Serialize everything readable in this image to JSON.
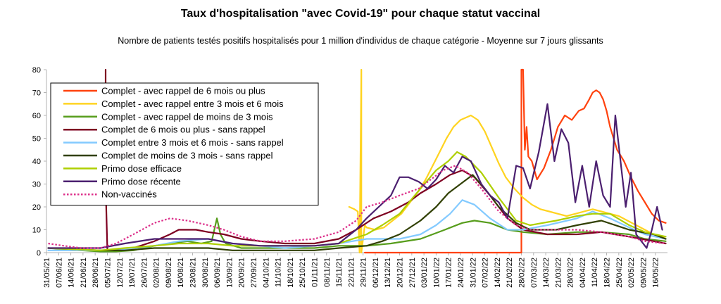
{
  "chart_data": {
    "type": "line",
    "title": "Taux d'hospitalisation \"avec Covid-19\" pour chaque statut vaccinal",
    "subtitle": "Nombre de patients testés positifs hospitalisés pour 1 million d'individus de chaque catégorie - Moyenne sur 7 jours glissants",
    "ylim": [
      0,
      80
    ],
    "yticks": [
      0,
      10,
      20,
      30,
      40,
      50,
      60,
      70,
      80
    ],
    "xlim": [
      "2021-05-31",
      "2022-05-23"
    ],
    "xticks": [
      "31/05/21",
      "07/06/21",
      "14/06/21",
      "21/06/21",
      "28/06/21",
      "05/07/21",
      "12/07/21",
      "19/07/21",
      "26/07/21",
      "02/08/21",
      "09/08/21",
      "16/08/21",
      "23/08/21",
      "30/08/21",
      "06/09/21",
      "13/09/21",
      "20/09/21",
      "27/09/21",
      "04/10/21",
      "11/10/21",
      "18/10/21",
      "25/10/21",
      "01/11/21",
      "08/11/21",
      "15/11/21",
      "22/11/21",
      "29/11/21",
      "06/12/21",
      "13/12/21",
      "20/12/21",
      "27/12/21",
      "03/01/22",
      "10/01/22",
      "17/01/22",
      "24/01/22",
      "31/01/22",
      "07/02/22",
      "14/02/22",
      "21/02/22",
      "28/02/22",
      "07/03/22",
      "14/03/22",
      "21/03/22",
      "28/03/22",
      "04/04/22",
      "11/04/22",
      "18/04/22",
      "25/04/22",
      "02/05/22",
      "09/05/22",
      "16/05/22"
    ],
    "grid": false,
    "legend_position": "top-left",
    "series": [
      {
        "name": "Complet - avec rappel de 6 mois ou plus",
        "color": "#ff420e",
        "x": [
          "2021-11-30",
          "2022-02-27",
          "2022-02-28",
          "2022-02-28",
          "2022-03-01",
          "2022-03-02",
          "2022-03-03",
          "2022-03-04",
          "2022-03-06",
          "2022-03-09",
          "2022-03-13",
          "2022-03-17",
          "2022-03-21",
          "2022-03-25",
          "2022-03-29",
          "2022-04-02",
          "2022-04-05",
          "2022-04-08",
          "2022-04-10",
          "2022-04-12",
          "2022-04-14",
          "2022-04-16",
          "2022-04-18",
          "2022-04-20",
          "2022-04-24",
          "2022-04-28",
          "2022-05-02",
          "2022-05-06",
          "2022-05-10",
          "2022-05-14",
          "2022-05-18",
          "2022-05-22"
        ],
        "y": [
          0,
          0,
          0,
          80,
          80,
          45,
          55,
          42,
          40,
          32,
          37,
          45,
          55,
          60,
          58,
          62,
          63,
          67,
          70,
          71,
          70,
          67,
          62,
          55,
          45,
          40,
          33,
          27,
          22,
          17,
          14,
          13
        ]
      },
      {
        "name": "Complet - avec rappel entre 3 mois et 6 mois",
        "color": "#ffd320",
        "x": [
          "2021-11-21",
          "2021-11-24",
          "2021-11-26",
          "2021-11-27",
          "2021-11-28",
          "2021-11-28",
          "2021-11-30",
          "2021-12-01",
          "2021-12-06",
          "2021-12-11",
          "2021-12-16",
          "2021-12-21",
          "2021-12-26",
          "2021-12-31",
          "2022-01-04",
          "2022-01-08",
          "2022-01-12",
          "2022-01-16",
          "2022-01-20",
          "2022-01-24",
          "2022-01-27",
          "2022-01-30",
          "2022-02-03",
          "2022-02-07",
          "2022-02-11",
          "2022-02-15",
          "2022-02-19",
          "2022-02-24",
          "2022-03-01",
          "2022-03-06",
          "2022-03-11",
          "2022-03-16",
          "2022-03-21",
          "2022-03-26",
          "2022-03-31",
          "2022-04-05",
          "2022-04-10",
          "2022-04-15",
          "2022-04-20",
          "2022-04-25",
          "2022-04-30",
          "2022-05-05",
          "2022-05-10",
          "2022-05-15",
          "2022-05-20",
          "2022-05-22"
        ],
        "y": [
          20,
          19,
          18,
          0,
          80,
          0,
          12,
          11,
          10,
          11,
          14,
          17,
          22,
          27,
          32,
          38,
          44,
          50,
          55,
          58,
          59,
          60,
          58,
          53,
          46,
          39,
          33,
          28,
          24,
          21,
          19,
          18,
          17,
          16,
          17,
          18,
          19,
          18,
          17,
          16,
          14,
          12,
          10,
          8,
          7,
          6
        ]
      },
      {
        "name": "Complet - avec rappel de moins de 3 mois",
        "color": "#579d1c",
        "x": [
          "2021-06-01",
          "2021-06-10",
          "2021-06-20",
          "2021-07-01",
          "2021-07-10",
          "2021-07-20",
          "2021-08-01",
          "2021-08-10",
          "2021-08-20",
          "2021-08-28",
          "2021-09-03",
          "2021-09-06",
          "2021-09-08",
          "2021-09-11",
          "2021-09-20",
          "2021-10-01",
          "2021-10-15",
          "2021-11-01",
          "2021-11-15",
          "2021-12-01",
          "2021-12-15",
          "2022-01-01",
          "2022-01-15",
          "2022-01-25",
          "2022-02-01",
          "2022-02-10",
          "2022-02-20",
          "2022-03-01",
          "2022-03-15",
          "2022-04-01",
          "2022-04-15",
          "2022-05-01",
          "2022-05-10",
          "2022-05-22"
        ],
        "y": [
          2,
          1.5,
          1,
          0.5,
          0.5,
          1,
          3,
          4,
          5,
          4,
          5,
          15,
          8,
          4,
          2,
          2,
          2,
          2,
          3,
          3,
          4,
          6,
          10,
          13,
          14,
          13,
          10,
          9,
          8,
          9,
          9,
          8,
          6,
          5
        ]
      },
      {
        "name": "Complet de 6 mois ou plus - sans rappel",
        "color": "#7e0021",
        "x": [
          "2021-07-04",
          "2021-07-04",
          "2021-07-05",
          "2021-07-20",
          "2021-08-01",
          "2021-08-10",
          "2021-08-15",
          "2021-08-25",
          "2021-09-01",
          "2021-09-10",
          "2021-09-20",
          "2021-10-01",
          "2021-10-15",
          "2021-11-01",
          "2021-11-15",
          "2021-11-25",
          "2021-12-05",
          "2021-12-15",
          "2021-12-25",
          "2022-01-01",
          "2022-01-10",
          "2022-01-18",
          "2022-01-25",
          "2022-02-01",
          "2022-02-10",
          "2022-02-20",
          "2022-03-01",
          "2022-03-15",
          "2022-04-01",
          "2022-04-15",
          "2022-05-01",
          "2022-05-22"
        ],
        "y": [
          80,
          30,
          1,
          2,
          5,
          8,
          10,
          10,
          9,
          8,
          6,
          5,
          4,
          4,
          6,
          10,
          15,
          18,
          22,
          26,
          30,
          34,
          36,
          33,
          25,
          15,
          10,
          8,
          8,
          9,
          7,
          4
        ]
      },
      {
        "name": "Complet entre 3 mois et 6 mois - sans rappel",
        "color": "#83caff",
        "x": [
          "2021-06-01",
          "2021-06-15",
          "2021-07-01",
          "2021-07-15",
          "2021-08-01",
          "2021-08-15",
          "2021-09-01",
          "2021-09-15",
          "2021-10-01",
          "2021-10-15",
          "2021-11-01",
          "2021-11-15",
          "2021-12-01",
          "2021-12-10",
          "2021-12-20",
          "2022-01-01",
          "2022-01-10",
          "2022-01-18",
          "2022-01-25",
          "2022-02-01",
          "2022-02-10",
          "2022-02-20",
          "2022-03-01",
          "2022-03-15",
          "2022-04-01",
          "2022-04-10",
          "2022-04-20",
          "2022-05-01",
          "2022-05-10",
          "2022-05-22"
        ],
        "y": [
          1,
          1,
          1,
          1.5,
          3,
          5,
          6,
          4,
          3,
          2,
          3,
          4,
          6,
          6,
          6,
          8,
          12,
          17,
          23,
          21,
          15,
          10,
          10,
          12,
          15,
          18,
          15,
          11,
          8,
          6
        ]
      },
      {
        "name": "Complet de moins de 3 mois - sans rappel",
        "color": "#314004",
        "x": [
          "2021-06-01",
          "2021-06-15",
          "2021-07-01",
          "2021-07-15",
          "2021-08-01",
          "2021-08-15",
          "2021-09-01",
          "2021-09-15",
          "2021-10-01",
          "2021-10-15",
          "2021-11-01",
          "2021-11-15",
          "2021-12-01",
          "2021-12-10",
          "2021-12-20",
          "2022-01-01",
          "2022-01-10",
          "2022-01-17",
          "2022-01-24",
          "2022-01-31",
          "2022-02-07",
          "2022-02-15",
          "2022-02-25",
          "2022-03-05",
          "2022-03-20",
          "2022-04-01",
          "2022-04-15",
          "2022-05-01",
          "2022-05-15",
          "2022-05-22"
        ],
        "y": [
          2,
          1.5,
          1,
          1,
          2,
          2,
          2,
          1,
          1,
          1,
          1,
          2,
          3,
          5,
          8,
          14,
          20,
          26,
          30,
          34,
          28,
          20,
          13,
          10,
          10,
          12,
          14,
          10,
          8,
          6
        ]
      },
      {
        "name": "Primo dose efficace",
        "color": "#aecf00",
        "x": [
          "2021-06-01",
          "2021-06-15",
          "2021-07-01",
          "2021-07-15",
          "2021-08-01",
          "2021-08-15",
          "2021-09-01",
          "2021-09-15",
          "2021-10-01",
          "2021-10-15",
          "2021-11-01",
          "2021-11-15",
          "2021-12-01",
          "2021-12-10",
          "2021-12-20",
          "2022-01-01",
          "2022-01-10",
          "2022-01-17",
          "2022-01-22",
          "2022-01-27",
          "2022-02-05",
          "2022-02-15",
          "2022-02-25",
          "2022-03-05",
          "2022-03-20",
          "2022-04-01",
          "2022-04-10",
          "2022-04-20",
          "2022-05-01",
          "2022-05-10",
          "2022-05-22"
        ],
        "y": [
          2,
          1.5,
          1,
          2,
          3,
          4,
          4,
          3,
          3,
          3,
          3,
          4,
          8,
          12,
          17,
          28,
          36,
          40,
          44,
          42,
          35,
          24,
          14,
          12,
          14,
          16,
          17,
          17,
          12,
          9,
          7
        ]
      },
      {
        "name": "Primo dose récente",
        "color": "#4b1f6f",
        "x": [
          "2021-06-01",
          "2021-06-15",
          "2021-07-01",
          "2021-07-15",
          "2021-08-01",
          "2021-08-15",
          "2021-09-01",
          "2021-09-15",
          "2021-10-01",
          "2021-10-15",
          "2021-11-01",
          "2021-11-15",
          "2021-11-25",
          "2021-12-01",
          "2021-12-08",
          "2021-12-15",
          "2021-12-20",
          "2021-12-25",
          "2021-12-31",
          "2022-01-05",
          "2022-01-10",
          "2022-01-15",
          "2022-01-20",
          "2022-01-25",
          "2022-01-30",
          "2022-02-05",
          "2022-02-10",
          "2022-02-15",
          "2022-02-20",
          "2022-02-25",
          "2022-03-01",
          "2022-03-05",
          "2022-03-10",
          "2022-03-15",
          "2022-03-19",
          "2022-03-23",
          "2022-03-27",
          "2022-03-31",
          "2022-04-04",
          "2022-04-08",
          "2022-04-12",
          "2022-04-16",
          "2022-04-20",
          "2022-04-23",
          "2022-04-26",
          "2022-04-29",
          "2022-05-02",
          "2022-05-05",
          "2022-05-08",
          "2022-05-11",
          "2022-05-14",
          "2022-05-17",
          "2022-05-20"
        ],
        "y": [
          2,
          2,
          2,
          4,
          6,
          6,
          6,
          4,
          3,
          3,
          3,
          4,
          10,
          15,
          20,
          25,
          33,
          33,
          31,
          28,
          32,
          38,
          35,
          42,
          40,
          30,
          25,
          22,
          15,
          38,
          37,
          28,
          44,
          65,
          40,
          54,
          48,
          22,
          38,
          20,
          40,
          25,
          20,
          60,
          40,
          20,
          35,
          8,
          5,
          2,
          10,
          20,
          10
        ]
      },
      {
        "name": "Non-vaccinés",
        "color": "#dc2f8a",
        "dashed": true,
        "x": [
          "2021-06-01",
          "2021-06-10",
          "2021-06-20",
          "2021-07-01",
          "2021-07-10",
          "2021-07-20",
          "2021-08-01",
          "2021-08-10",
          "2021-08-20",
          "2021-09-01",
          "2021-09-10",
          "2021-09-20",
          "2021-10-01",
          "2021-10-15",
          "2021-11-01",
          "2021-11-15",
          "2021-11-25",
          "2021-12-01",
          "2021-12-10",
          "2021-12-20",
          "2021-12-31",
          "2022-01-07",
          "2022-01-14",
          "2022-01-21",
          "2022-01-28",
          "2022-02-05",
          "2022-02-15",
          "2022-02-25",
          "2022-03-05",
          "2022-03-15",
          "2022-04-01",
          "2022-04-15",
          "2022-05-01",
          "2022-05-10",
          "2022-05-22"
        ],
        "y": [
          4,
          3,
          2,
          2,
          4,
          8,
          13,
          15,
          14,
          12,
          10,
          7,
          5,
          5,
          6,
          9,
          14,
          20,
          22,
          25,
          28,
          32,
          36,
          38,
          35,
          28,
          18,
          12,
          10,
          10,
          10,
          9,
          7,
          5,
          4
        ]
      }
    ]
  }
}
